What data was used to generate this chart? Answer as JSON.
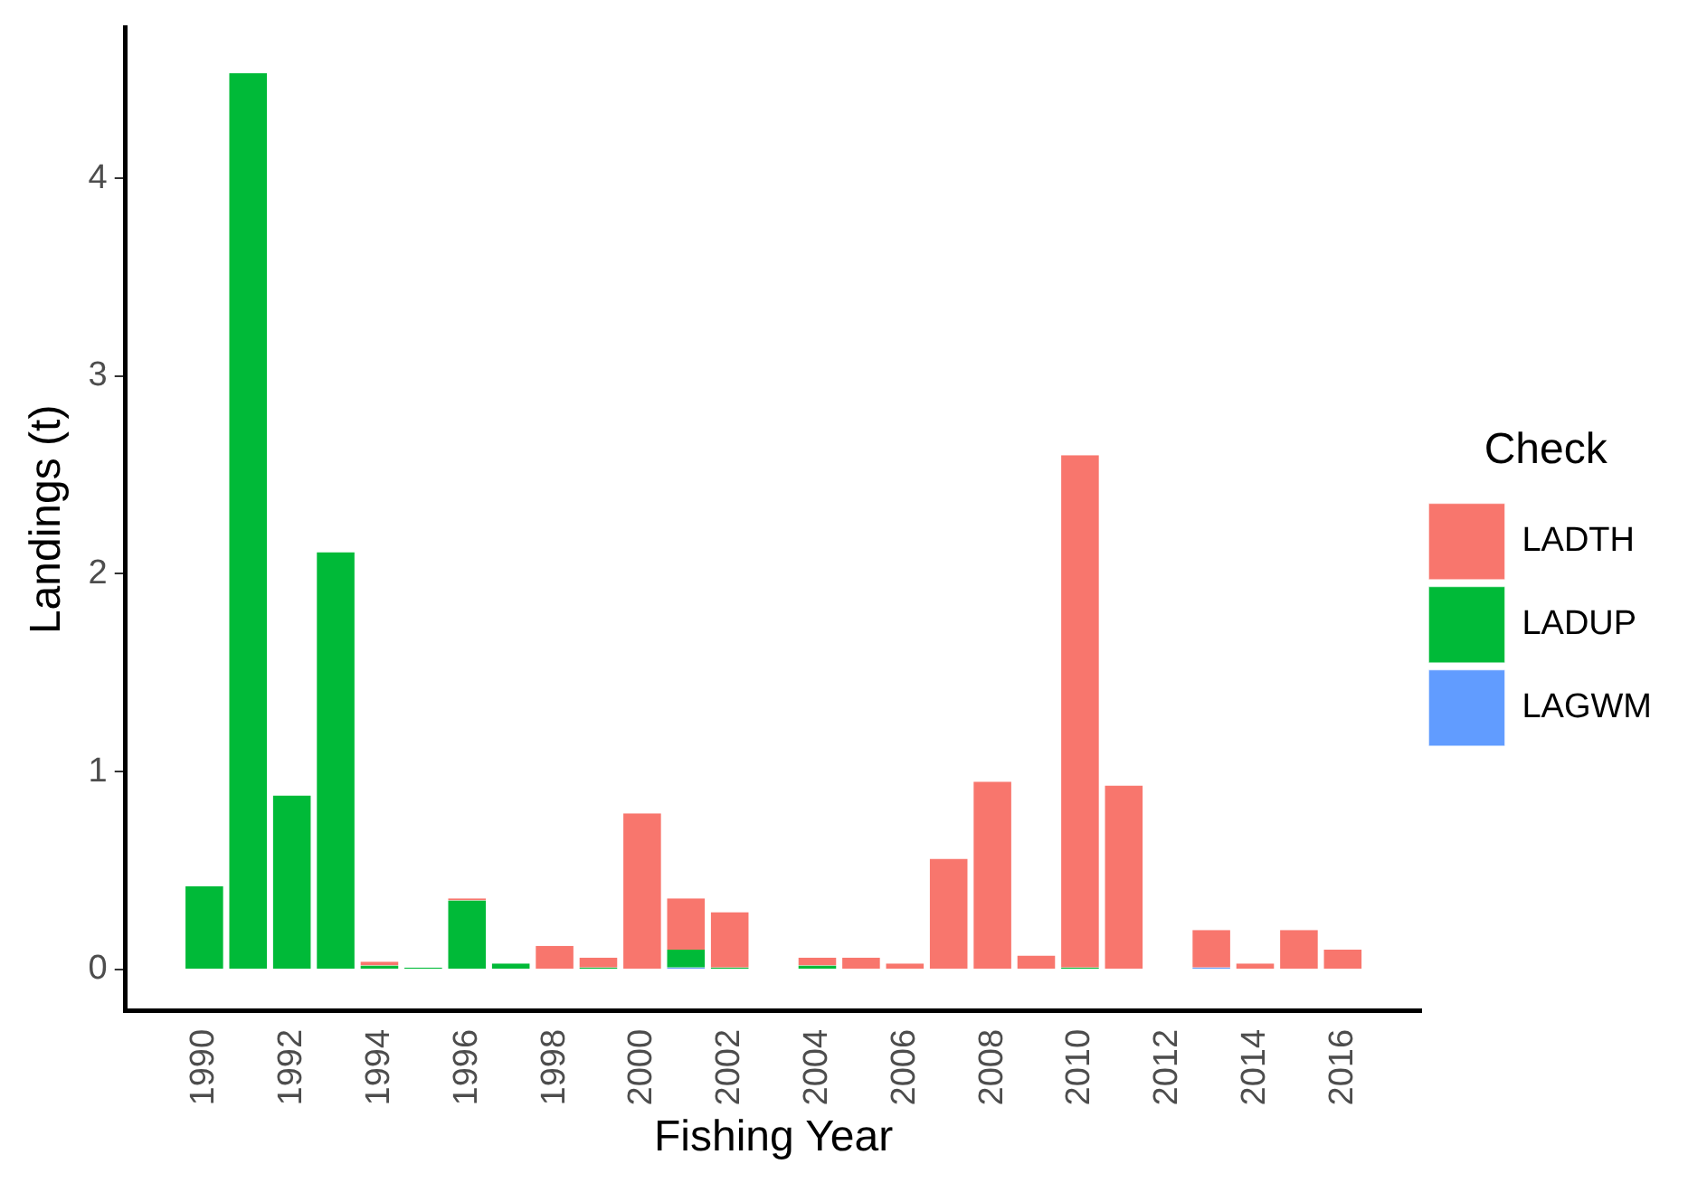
{
  "chart_data": {
    "type": "bar",
    "stacked": true,
    "xlabel": "Fishing Year",
    "ylabel": "Landings (t)",
    "legend_title": "Check",
    "legend": "right",
    "grid": false,
    "x": [
      1990,
      1991,
      1992,
      1993,
      1994,
      1995,
      1996,
      1997,
      1998,
      1999,
      2000,
      2001,
      2002,
      2003,
      2004,
      2005,
      2006,
      2007,
      2008,
      2009,
      2010,
      2011,
      2012,
      2013,
      2014,
      2015,
      2016
    ],
    "xlim": [
      1988.2,
      2017.8
    ],
    "xticks": [
      1990,
      1992,
      1994,
      1996,
      1998,
      2000,
      2002,
      2004,
      2006,
      2008,
      2010,
      2012,
      2014,
      2016
    ],
    "ylim": [
      -0.21,
      4.76
    ],
    "yticks": [
      0,
      1,
      2,
      3,
      4
    ],
    "series": [
      {
        "name": "LAGWM",
        "color": "#619cff",
        "values": [
          0,
          0,
          0,
          0,
          0,
          0,
          0,
          0,
          0,
          0,
          0,
          0.01,
          0,
          null,
          0,
          0,
          0,
          0,
          0,
          0,
          0,
          0,
          null,
          0.01,
          0,
          0,
          0
        ]
      },
      {
        "name": "LADUP",
        "color": "#00ba38",
        "values": [
          0.42,
          4.53,
          0.88,
          2.11,
          0.02,
          0.01,
          0.35,
          0.03,
          0,
          0.01,
          0,
          0.09,
          0.01,
          null,
          0.02,
          0,
          0,
          0,
          0,
          0,
          0.01,
          0,
          null,
          0,
          0,
          0,
          0
        ]
      },
      {
        "name": "LADTH",
        "color": "#f8766d",
        "values": [
          0,
          0,
          0,
          0,
          0.02,
          0,
          0.01,
          0,
          0.12,
          0.05,
          0.79,
          0.26,
          0.28,
          null,
          0.04,
          0.06,
          0.03,
          0.56,
          0.95,
          0.07,
          2.59,
          0.93,
          null,
          0.19,
          0.03,
          0.2,
          0.1
        ]
      }
    ]
  }
}
